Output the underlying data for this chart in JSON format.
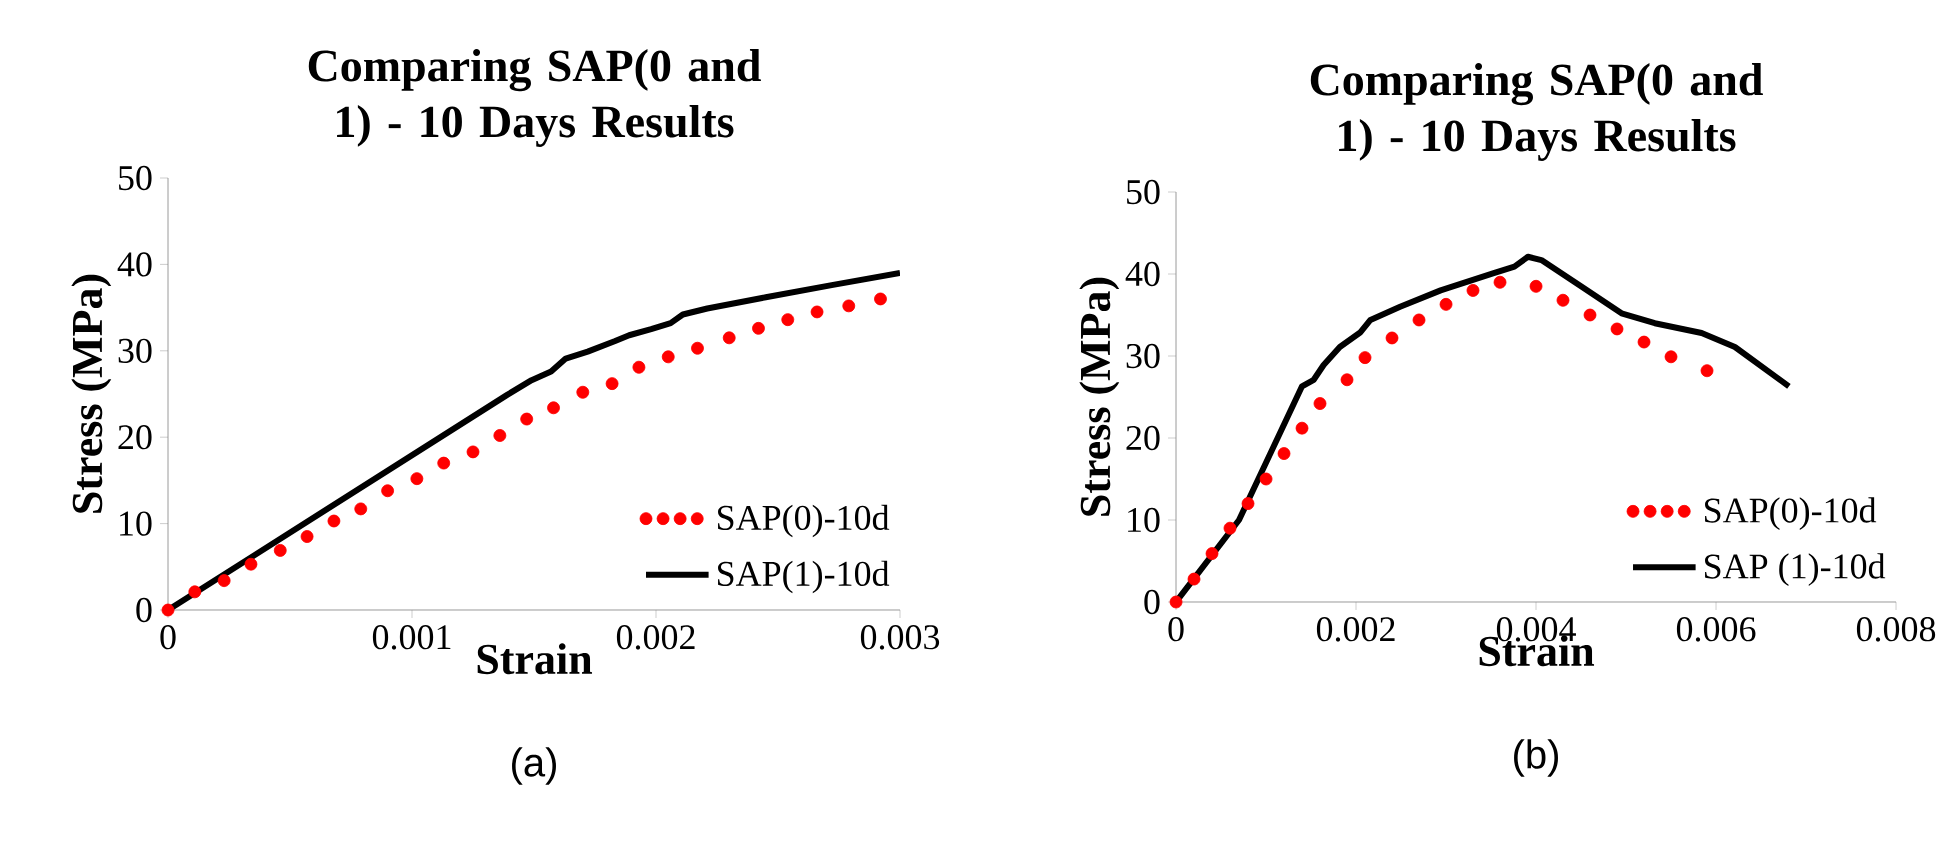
{
  "chart_data": [
    {
      "type": "line",
      "title": "Comparing SAP(0 and 1) - 10 Days Results",
      "xlabel": "Strain",
      "ylabel": "Stress (MPa)",
      "xlim": [
        0,
        0.003
      ],
      "xticks": [
        0,
        0.001,
        0.002,
        0.003
      ],
      "ylim": [
        0,
        50
      ],
      "yticks": [
        0,
        10,
        20,
        30,
        40,
        50
      ],
      "grid": false,
      "legend": "bottom right",
      "annotations": [
        "(a)"
      ],
      "series": [
        {
          "name": "SAP(0)-10d",
          "type": "scatter",
          "marker": "circle",
          "color": "#ff0000",
          "x": [
            0,
            0.00011,
            0.00023,
            0.00034,
            0.00046,
            0.00057,
            0.00068,
            0.00079,
            0.0009,
            0.00102,
            0.00113,
            0.00125,
            0.00136,
            0.00147,
            0.00158,
            0.0017,
            0.00182,
            0.00193,
            0.00205,
            0.00217,
            0.0023,
            0.00242,
            0.00254,
            0.00266,
            0.00279,
            0.00292
          ],
          "values": [
            0,
            2.1,
            3.4,
            5.3,
            6.9,
            8.5,
            10.3,
            11.7,
            13.8,
            15.2,
            17.0,
            18.3,
            20.2,
            22.1,
            23.4,
            25.2,
            26.2,
            28.1,
            29.3,
            30.3,
            31.5,
            32.6,
            33.6,
            34.5,
            35.2,
            36.0
          ]
        },
        {
          "name": "SAP(1)-10d",
          "type": "line",
          "line_style": "solid",
          "color": "#000000",
          "x": [
            0,
            0.00139,
            0.00149,
            0.00157,
            0.00163,
            0.00172,
            0.00183,
            0.00189,
            0.00198,
            0.00206,
            0.00211,
            0.00221,
            0.00245,
            0.00272,
            0.003
          ],
          "values": [
            0,
            24.9,
            26.6,
            27.6,
            29.1,
            29.9,
            31.1,
            31.8,
            32.5,
            33.2,
            34.2,
            34.9,
            36.2,
            37.6,
            39.0
          ]
        }
      ]
    },
    {
      "type": "line",
      "title": "Comparing SAP(0 and 1) - 10 Days Results",
      "xlabel": "Strain",
      "ylabel": "Stress (MPa)",
      "xlim": [
        0,
        0.008
      ],
      "xticks": [
        0,
        0.002,
        0.004,
        0.006,
        0.008
      ],
      "ylim": [
        0,
        50
      ],
      "yticks": [
        0,
        10,
        20,
        30,
        40,
        50
      ],
      "grid": false,
      "legend": "bottom right",
      "annotations": [
        "(b)"
      ],
      "series": [
        {
          "name": "SAP(0)-10d",
          "type": "scatter",
          "marker": "circle",
          "color": "#ff0000",
          "x": [
            0,
            0.0002,
            0.0004,
            0.0006,
            0.0008,
            0.001,
            0.0012,
            0.0014,
            0.0016,
            0.0019,
            0.0021,
            0.0024,
            0.0027,
            0.003,
            0.0033,
            0.0036,
            0.004,
            0.0043,
            0.0046,
            0.0049,
            0.0052,
            0.0055,
            0.0059
          ],
          "values": [
            0,
            2.8,
            5.9,
            9.0,
            12.0,
            15.0,
            18.1,
            21.2,
            24.2,
            27.1,
            29.8,
            32.2,
            34.4,
            36.3,
            38.0,
            39.0,
            38.5,
            36.8,
            35.0,
            33.3,
            31.7,
            29.9,
            28.2
          ]
        },
        {
          "name": "SAP (1)-10d",
          "type": "line",
          "line_style": "solid",
          "color": "#000000",
          "x": [
            0,
            0.0007,
            0.0014,
            0.00153,
            0.00164,
            0.00182,
            0.00205,
            0.00216,
            0.00249,
            0.00294,
            0.00353,
            0.00376,
            0.00391,
            0.00406,
            0.0045,
            0.00495,
            0.00532,
            0.00584,
            0.00621,
            0.00681
          ],
          "values": [
            0,
            10,
            26.3,
            27.1,
            28.9,
            31.1,
            32.9,
            34.4,
            36.0,
            38.0,
            40.1,
            40.9,
            42.1,
            41.7,
            38.5,
            35.2,
            34.0,
            32.8,
            31.1,
            26.3
          ]
        }
      ]
    }
  ]
}
